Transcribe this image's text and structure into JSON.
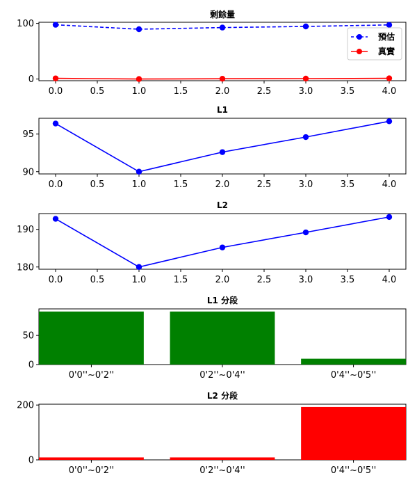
{
  "chart_data": [
    {
      "type": "line",
      "title": "剩餘量",
      "x": [
        0,
        1,
        2,
        3,
        4
      ],
      "xlim": [
        -0.2,
        4.2
      ],
      "xticks": [
        "0.0",
        "0.5",
        "1.0",
        "1.5",
        "2.0",
        "2.5",
        "3.0",
        "3.5",
        "4.0"
      ],
      "ylim": [
        -3,
        102
      ],
      "yticks": [
        0,
        100
      ],
      "legend": "top-right",
      "series": [
        {
          "name": "預估",
          "values": [
            97.5,
            89.5,
            92.5,
            94.5,
            97.2
          ],
          "color": "#0000ff",
          "dashed": true
        },
        {
          "name": "真實",
          "values": [
            1.2,
            0.0,
            0.5,
            0.8,
            1.3
          ],
          "color": "#ff0000",
          "dashed": false
        }
      ]
    },
    {
      "type": "line",
      "title": "L1",
      "x": [
        0,
        1,
        2,
        3,
        4
      ],
      "xlim": [
        -0.2,
        4.2
      ],
      "xticks": [
        "0.0",
        "0.5",
        "1.0",
        "1.5",
        "2.0",
        "2.5",
        "3.0",
        "3.5",
        "4.0"
      ],
      "ylim": [
        89.7,
        97.1
      ],
      "yticks": [
        90,
        95
      ],
      "series": [
        {
          "values": [
            96.4,
            90.0,
            92.6,
            94.6,
            96.7
          ],
          "color": "#0000ff",
          "dashed": false
        }
      ]
    },
    {
      "type": "line",
      "title": "L2",
      "x": [
        0,
        1,
        2,
        3,
        4
      ],
      "xlim": [
        -0.2,
        4.2
      ],
      "xticks": [
        "0.0",
        "0.5",
        "1.0",
        "1.5",
        "2.0",
        "2.5",
        "3.0",
        "3.5",
        "4.0"
      ],
      "ylim": [
        179.4,
        194.2
      ],
      "yticks": [
        180,
        190
      ],
      "series": [
        {
          "values": [
            192.8,
            180.0,
            185.2,
            189.2,
            193.3
          ],
          "color": "#0000ff",
          "dashed": false
        }
      ]
    },
    {
      "type": "bar",
      "title": "L1 分段",
      "categories": [
        "0'0''~0'2''",
        "0'2''~0'4''",
        "0'4''~0'5''"
      ],
      "values": [
        91,
        91,
        10
      ],
      "color": "#008000",
      "ylim": [
        0,
        95.5
      ],
      "yticks": [
        0,
        50
      ]
    },
    {
      "type": "bar",
      "title": "L2 分段",
      "categories": [
        "0'0''~0'2''",
        "0'2''~0'4''",
        "0'4''~0'5''"
      ],
      "values": [
        9,
        9,
        193
      ],
      "color": "#ff0000",
      "ylim": [
        0,
        203
      ],
      "yticks": [
        0,
        200
      ]
    }
  ]
}
